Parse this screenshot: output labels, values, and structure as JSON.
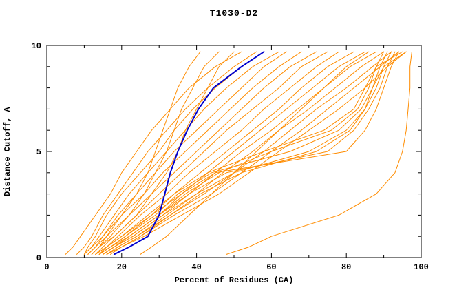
{
  "title": "T1030-D2",
  "x_axis": {
    "label": "Percent of Residues (CA)",
    "min": 0,
    "max": 100,
    "major_ticks": [
      0,
      20,
      40,
      60,
      80,
      100
    ],
    "minor_ticks": [
      10,
      30,
      50,
      70,
      90
    ]
  },
  "y_axis": {
    "label": "Distance Cutoff, A",
    "min": 0,
    "max": 10,
    "major_ticks": [
      0,
      5,
      10
    ],
    "minor_ticks": [
      1,
      2,
      3,
      4,
      6,
      7,
      8,
      9
    ]
  },
  "colors": {
    "model_line": "#FF8C00",
    "highlight_line": "#0000CD",
    "axis": "#000000",
    "background": "#FFFFFF"
  },
  "chart_data": {
    "type": "line",
    "title": "T1030-D2",
    "xlabel": "Percent of Residues (CA)",
    "ylabel": "Distance Cutoff, A",
    "xlim": [
      0,
      100
    ],
    "ylim": [
      0,
      10
    ],
    "grid": false,
    "legend": "none",
    "description": "Cumulative percent of CA residues fit under each distance cutoff; many orange model curves with one dark blue highlighted model curve.",
    "y_values": [
      0.15,
      0.5,
      1,
      2,
      3,
      4,
      5,
      6,
      7,
      8,
      9,
      9.7
    ],
    "series": [
      {
        "name": "model-01",
        "role": "model",
        "x": [
          5,
          7,
          9,
          13,
          17,
          20,
          24,
          28,
          33,
          38,
          45,
          52
        ]
      },
      {
        "name": "model-02",
        "role": "model",
        "x": [
          8,
          10,
          12,
          15,
          19,
          23,
          27,
          32,
          37,
          43,
          50,
          56
        ]
      },
      {
        "name": "model-03",
        "role": "model",
        "x": [
          10,
          11,
          13,
          16,
          20,
          25,
          30,
          34,
          39,
          45,
          52,
          58
        ]
      },
      {
        "name": "model-04",
        "role": "model",
        "x": [
          10,
          12,
          14,
          18,
          22,
          27,
          32,
          37,
          42,
          48,
          55,
          62
        ]
      },
      {
        "name": "model-05",
        "role": "model",
        "x": [
          11,
          13,
          15,
          19,
          24,
          29,
          34,
          40,
          46,
          52,
          58,
          64
        ]
      },
      {
        "name": "model-06",
        "role": "model",
        "x": [
          12,
          14,
          16,
          20,
          26,
          31,
          37,
          43,
          49,
          55,
          62,
          68
        ]
      },
      {
        "name": "model-07",
        "role": "model",
        "x": [
          12,
          14,
          17,
          22,
          28,
          34,
          40,
          46,
          52,
          58,
          65,
          72
        ]
      },
      {
        "name": "model-08",
        "role": "model",
        "x": [
          13,
          15,
          18,
          24,
          30,
          36,
          42,
          48,
          55,
          62,
          68,
          75
        ]
      },
      {
        "name": "model-09",
        "role": "model",
        "x": [
          13,
          16,
          19,
          25,
          32,
          38,
          45,
          52,
          58,
          65,
          72,
          78
        ]
      },
      {
        "name": "model-10",
        "role": "model",
        "x": [
          14,
          16,
          20,
          27,
          34,
          41,
          48,
          55,
          62,
          68,
          75,
          82
        ]
      },
      {
        "name": "model-11",
        "role": "model",
        "x": [
          14,
          17,
          21,
          28,
          36,
          43,
          50,
          57,
          64,
          71,
          78,
          85
        ]
      },
      {
        "name": "model-12",
        "role": "model",
        "x": [
          15,
          18,
          22,
          30,
          38,
          45,
          52,
          60,
          67,
          74,
          81,
          88
        ]
      },
      {
        "name": "model-13",
        "role": "model",
        "x": [
          15,
          18,
          23,
          31,
          40,
          47,
          55,
          62,
          70,
          77,
          84,
          90
        ]
      },
      {
        "name": "model-14",
        "role": "model",
        "x": [
          16,
          19,
          24,
          33,
          42,
          50,
          58,
          65,
          72,
          80,
          87,
          92
        ]
      },
      {
        "name": "model-15",
        "role": "model",
        "x": [
          16,
          20,
          25,
          34,
          44,
          52,
          60,
          68,
          75,
          82,
          89,
          94
        ]
      },
      {
        "name": "model-16",
        "role": "model",
        "x": [
          17,
          20,
          26,
          36,
          46,
          54,
          62,
          70,
          78,
          85,
          91,
          96
        ]
      },
      {
        "name": "model-17",
        "role": "model",
        "x": [
          10,
          12,
          15,
          20,
          24,
          27,
          29,
          31,
          33,
          35,
          38,
          41
        ]
      },
      {
        "name": "model-18",
        "role": "model",
        "x": [
          11,
          13,
          16,
          22,
          26,
          29,
          32,
          34,
          36,
          39,
          42,
          46
        ]
      },
      {
        "name": "model-19",
        "role": "model",
        "x": [
          12,
          14,
          18,
          24,
          28,
          32,
          35,
          37,
          40,
          43,
          46,
          50
        ]
      },
      {
        "name": "model-20",
        "role": "model",
        "x": [
          25,
          28,
          32,
          38,
          44,
          50,
          56,
          62,
          68,
          74,
          80,
          86
        ]
      },
      {
        "name": "model-21",
        "role": "model",
        "x": [
          14,
          17,
          22,
          30,
          36,
          45,
          80,
          85,
          88,
          90,
          92,
          94
        ]
      },
      {
        "name": "model-22",
        "role": "model",
        "x": [
          15,
          18,
          23,
          31,
          38,
          48,
          75,
          82,
          86,
          89,
          91,
          93
        ]
      },
      {
        "name": "model-23",
        "role": "model",
        "x": [
          16,
          19,
          24,
          32,
          40,
          50,
          70,
          80,
          85,
          88,
          90,
          92
        ]
      },
      {
        "name": "model-24",
        "role": "model",
        "x": [
          14,
          17,
          21,
          29,
          35,
          44,
          65,
          78,
          84,
          87,
          89,
          91
        ]
      },
      {
        "name": "model-25",
        "role": "model",
        "x": [
          15,
          18,
          22,
          30,
          37,
          46,
          60,
          76,
          83,
          86,
          88,
          90
        ]
      },
      {
        "name": "model-26",
        "role": "model",
        "x": [
          16,
          20,
          25,
          33,
          41,
          52,
          72,
          81,
          85,
          87,
          90,
          96
        ]
      },
      {
        "name": "model-27",
        "role": "model",
        "x": [
          13,
          16,
          20,
          28,
          34,
          43,
          58,
          74,
          82,
          85,
          88,
          95
        ]
      },
      {
        "name": "model-28",
        "role": "model",
        "x": [
          48,
          54,
          60,
          78,
          88,
          93,
          95,
          96,
          96.5,
          97,
          97,
          97.5
        ]
      },
      {
        "name": "highlight-model",
        "role": "highlight",
        "x": [
          18,
          22,
          27,
          30,
          31.5,
          33,
          35,
          37.5,
          40.5,
          44.5,
          52,
          58
        ]
      }
    ]
  }
}
